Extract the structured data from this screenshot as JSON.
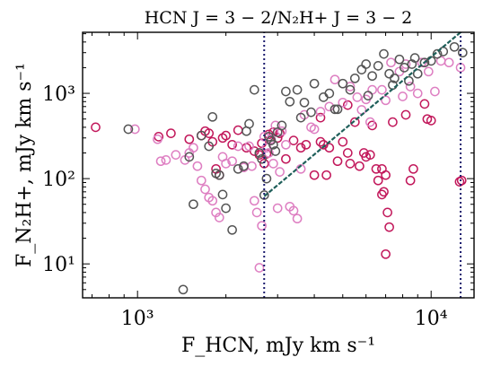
{
  "chart_data": {
    "type": "scatter",
    "title": "HCN J = 3 − 2/N₂H+ J = 3 − 2",
    "xlabel": "F_HCN, mJy km s⁻¹",
    "ylabel": "F_N₂H+, mJy km s⁻¹",
    "x_scale": "log",
    "y_scale": "log",
    "xlim": [
      650,
      14000
    ],
    "ylim": [
      4,
      5200
    ],
    "x_ticks": [
      {
        "value": 1000,
        "label": "10³"
      },
      {
        "value": 10000,
        "label": "10⁴"
      }
    ],
    "y_ticks": [
      {
        "value": 10,
        "label": "10¹"
      },
      {
        "value": 100,
        "label": "10²"
      },
      {
        "value": 1000,
        "label": "10³"
      }
    ],
    "grid": false,
    "colors": {
      "crimson": "#c2185b",
      "pink": "#de7fc2",
      "gray": "#555555",
      "vline": "#1a1a6e",
      "fitline": "#1f5f5a"
    },
    "reference_lines": {
      "vertical_x": [
        2700,
        12600
      ],
      "vertical_y_bottom": 4,
      "vertical_y_top": 5200,
      "diagonal": [
        [
          2700,
          62
        ],
        [
          12600,
          5200
        ]
      ]
    },
    "series": [
      {
        "color": "#c2185b",
        "points": [
          [
            720,
            400
          ],
          [
            1180,
            310
          ],
          [
            1300,
            340
          ],
          [
            1500,
            290
          ],
          [
            1650,
            320
          ],
          [
            1700,
            360
          ],
          [
            1750,
            340
          ],
          [
            1800,
            270
          ],
          [
            1850,
            130
          ],
          [
            1900,
            110
          ],
          [
            1950,
            300
          ],
          [
            2000,
            320
          ],
          [
            2100,
            250
          ],
          [
            2200,
            370
          ],
          [
            2350,
            230
          ],
          [
            2500,
            210
          ],
          [
            2600,
            190
          ],
          [
            2650,
            260
          ],
          [
            2700,
            150
          ],
          [
            2750,
            195
          ],
          [
            2800,
            330
          ],
          [
            2900,
            350
          ],
          [
            3000,
            300
          ],
          [
            3050,
            340
          ],
          [
            3200,
            170
          ],
          [
            3400,
            280
          ],
          [
            3600,
            230
          ],
          [
            3750,
            250
          ],
          [
            4000,
            110
          ],
          [
            4200,
            270
          ],
          [
            4300,
            250
          ],
          [
            4400,
            110
          ],
          [
            4500,
            230
          ],
          [
            4800,
            160
          ],
          [
            5000,
            270
          ],
          [
            5200,
            200
          ],
          [
            5300,
            150
          ],
          [
            5700,
            140
          ],
          [
            5900,
            200
          ],
          [
            6000,
            180
          ],
          [
            6200,
            190
          ],
          [
            6500,
            130
          ],
          [
            6800,
            130
          ],
          [
            6600,
            95
          ],
          [
            6900,
            70
          ],
          [
            7000,
            110
          ],
          [
            7100,
            40
          ],
          [
            7200,
            27
          ],
          [
            7000,
            13
          ],
          [
            6800,
            65
          ],
          [
            8500,
            95
          ],
          [
            8700,
            130
          ],
          [
            9500,
            750
          ],
          [
            9700,
            500
          ],
          [
            10000,
            480
          ],
          [
            12700,
            95
          ],
          [
            12500,
            92
          ],
          [
            7400,
            460
          ],
          [
            8200,
            560
          ],
          [
            6300,
            420
          ],
          [
            5500,
            460
          ],
          [
            5200,
            730
          ],
          [
            4200,
            520
          ]
        ]
      },
      {
        "color": "#de7fc2",
        "points": [
          [
            980,
            380
          ],
          [
            1170,
            290
          ],
          [
            1200,
            160
          ],
          [
            1250,
            165
          ],
          [
            1350,
            190
          ],
          [
            1450,
            165
          ],
          [
            1500,
            200
          ],
          [
            1550,
            230
          ],
          [
            1600,
            140
          ],
          [
            1650,
            95
          ],
          [
            1700,
            75
          ],
          [
            1750,
            60
          ],
          [
            1800,
            55
          ],
          [
            1850,
            40
          ],
          [
            1900,
            35
          ],
          [
            1950,
            180
          ],
          [
            2000,
            150
          ],
          [
            2100,
            160
          ],
          [
            2200,
            240
          ],
          [
            2300,
            135
          ],
          [
            2400,
            240
          ],
          [
            2450,
            140
          ],
          [
            2500,
            55
          ],
          [
            2550,
            40
          ],
          [
            2600,
            9
          ],
          [
            2650,
            28
          ],
          [
            2700,
            310
          ],
          [
            2750,
            230
          ],
          [
            2800,
            200
          ],
          [
            2850,
            290
          ],
          [
            2900,
            150
          ],
          [
            2950,
            420
          ],
          [
            3000,
            45
          ],
          [
            3050,
            120
          ],
          [
            3100,
            360
          ],
          [
            3200,
            250
          ],
          [
            3300,
            47
          ],
          [
            3400,
            42
          ],
          [
            3500,
            34
          ],
          [
            3600,
            130
          ],
          [
            3700,
            560
          ],
          [
            3900,
            400
          ],
          [
            4200,
            610
          ],
          [
            4500,
            700
          ],
          [
            4700,
            1450
          ],
          [
            5000,
            780
          ],
          [
            5300,
            1200
          ],
          [
            5600,
            900
          ],
          [
            6000,
            850
          ],
          [
            6300,
            1100
          ],
          [
            6800,
            1100
          ],
          [
            7300,
            2300
          ],
          [
            7800,
            1800
          ],
          [
            8200,
            2200
          ],
          [
            8500,
            1200
          ],
          [
            9000,
            1000
          ],
          [
            9300,
            2300
          ],
          [
            9800,
            1800
          ],
          [
            10800,
            2400
          ],
          [
            11500,
            2300
          ],
          [
            12600,
            2000
          ],
          [
            6200,
            460
          ],
          [
            8000,
            920
          ],
          [
            10300,
            1050
          ],
          [
            5800,
            640
          ],
          [
            4000,
            380
          ],
          [
            7000,
            830
          ]
        ]
      },
      {
        "color": "#555555",
        "points": [
          [
            930,
            380
          ],
          [
            1430,
            5
          ],
          [
            1500,
            180
          ],
          [
            1550,
            50
          ],
          [
            1650,
            320
          ],
          [
            1750,
            240
          ],
          [
            1800,
            530
          ],
          [
            1850,
            115
          ],
          [
            1900,
            110
          ],
          [
            1950,
            65
          ],
          [
            2000,
            45
          ],
          [
            2100,
            25
          ],
          [
            2200,
            130
          ],
          [
            2300,
            140
          ],
          [
            2350,
            360
          ],
          [
            2400,
            440
          ],
          [
            2500,
            1100
          ],
          [
            2600,
            200
          ],
          [
            2650,
            170
          ],
          [
            2700,
            64
          ],
          [
            2750,
            100
          ],
          [
            2800,
            310
          ],
          [
            2850,
            280
          ],
          [
            2900,
            250
          ],
          [
            2950,
            210
          ],
          [
            3000,
            350
          ],
          [
            3100,
            420
          ],
          [
            3200,
            1050
          ],
          [
            3300,
            800
          ],
          [
            3500,
            1100
          ],
          [
            3700,
            780
          ],
          [
            3900,
            600
          ],
          [
            4000,
            1300
          ],
          [
            4300,
            900
          ],
          [
            4500,
            1000
          ],
          [
            4700,
            650
          ],
          [
            5000,
            1300
          ],
          [
            5300,
            1100
          ],
          [
            5500,
            1500
          ],
          [
            5800,
            1900
          ],
          [
            6000,
            2200
          ],
          [
            6300,
            1600
          ],
          [
            6600,
            2100
          ],
          [
            6900,
            2900
          ],
          [
            7200,
            1700
          ],
          [
            7500,
            1500
          ],
          [
            7800,
            2500
          ],
          [
            8100,
            2000
          ],
          [
            8400,
            1400
          ],
          [
            8800,
            2600
          ],
          [
            9000,
            1700
          ],
          [
            9500,
            2300
          ],
          [
            10000,
            2400
          ],
          [
            10500,
            2900
          ],
          [
            11000,
            3100
          ],
          [
            12000,
            3500
          ],
          [
            12800,
            3000
          ],
          [
            4800,
            650
          ],
          [
            6100,
            940
          ],
          [
            7400,
            1250
          ],
          [
            8600,
            2200
          ],
          [
            3600,
            520
          ]
        ]
      }
    ]
  }
}
